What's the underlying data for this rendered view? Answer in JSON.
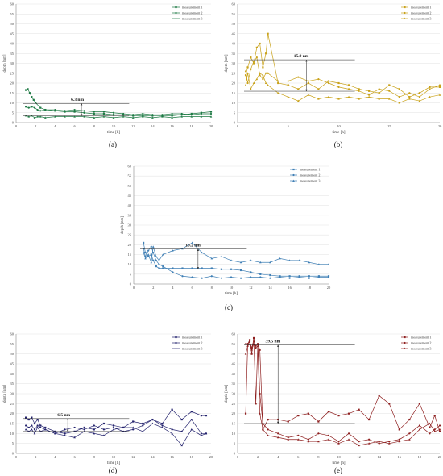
{
  "chart_data": [
    {
      "type": "line",
      "panel_label": "(a)",
      "xlabel": "time [h]",
      "ylabel": "depth [nm]",
      "xlim": [
        0,
        20
      ],
      "ylim": [
        0,
        60
      ],
      "xticks": [
        0,
        2,
        4,
        6,
        8,
        10,
        12,
        14,
        16,
        18,
        20
      ],
      "yticks": [
        0,
        5,
        10,
        15,
        20,
        25,
        30,
        35,
        40,
        45,
        50,
        55,
        60
      ],
      "color": "#1e7a44",
      "legend_position": "top-right",
      "annotation": {
        "text": "6.3 nm",
        "x": 6.7,
        "y_top": 9.7,
        "y_bottom": 3.4
      },
      "series": [
        {
          "name": "measurement 1",
          "x": [
            1.0,
            1.2,
            1.4,
            1.6,
            1.8,
            2.0,
            2.5,
            3,
            4,
            5,
            6,
            7,
            8,
            9,
            10,
            11,
            12,
            13,
            14,
            15,
            16,
            17,
            18,
            19,
            20
          ],
          "values": [
            16.5,
            17.0,
            15.0,
            13.0,
            11.5,
            10.0,
            7.5,
            6.5,
            6.0,
            5.5,
            5.5,
            5.0,
            4.5,
            4.5,
            4.0,
            4.0,
            3.5,
            3.5,
            3.5,
            3.5,
            3.5,
            4.0,
            4.5,
            5.0,
            5.5
          ]
        },
        {
          "name": "measurement 2",
          "x": [
            1.0,
            1.3,
            1.6,
            1.9,
            2.2,
            2.5,
            3,
            4,
            5,
            6,
            7,
            8,
            9,
            10,
            11,
            12,
            13,
            14,
            15,
            16,
            17,
            18,
            19,
            20
          ],
          "values": [
            8.0,
            7.5,
            8.0,
            7.5,
            6.5,
            6.0,
            6.5,
            6.5,
            6.0,
            6.5,
            6.0,
            5.5,
            5.5,
            5.0,
            4.5,
            4.0,
            4.5,
            4.0,
            4.0,
            4.5,
            4.5,
            4.0,
            4.5,
            4.5
          ]
        },
        {
          "name": "measurement 3",
          "x": [
            1.0,
            1.3,
            1.6,
            1.9,
            2.2,
            2.5,
            3,
            4,
            5,
            6,
            7,
            8,
            9,
            10,
            11,
            12,
            13,
            14,
            15,
            16,
            17,
            18,
            19,
            20
          ],
          "values": [
            3.5,
            3.0,
            3.5,
            2.5,
            3.0,
            3.0,
            2.5,
            3.0,
            3.0,
            3.0,
            3.0,
            2.5,
            3.0,
            2.5,
            3.0,
            2.5,
            3.0,
            2.5,
            3.0,
            2.5,
            3.0,
            3.0,
            3.0,
            3.0
          ]
        }
      ]
    },
    {
      "type": "line",
      "panel_label": "(b)",
      "xlabel": "time [h]",
      "ylabel": "depth [nm]",
      "xlim": [
        0,
        20
      ],
      "ylim": [
        0,
        60
      ],
      "xticks": [
        0,
        5,
        10,
        15,
        20
      ],
      "yticks": [
        0,
        5,
        10,
        15,
        20,
        25,
        30,
        35,
        40,
        45,
        50,
        55,
        60
      ],
      "color": "#c9a21a",
      "legend_position": "top-right",
      "annotation": {
        "text": "15.9 nm",
        "x": 6.8,
        "y_top": 31.8,
        "y_bottom": 15.9
      },
      "series": [
        {
          "name": "measurement 1",
          "x": [
            0.8,
            1.0,
            1.3,
            1.6,
            1.9,
            2.2,
            2.5,
            2.8,
            3,
            4,
            5,
            6,
            7,
            8,
            9,
            10,
            11,
            12,
            13,
            14,
            15,
            16,
            17,
            18,
            19,
            20
          ],
          "values": [
            24,
            28,
            33,
            30,
            38,
            40,
            28,
            35,
            45,
            20,
            19,
            17,
            20,
            17,
            21,
            20,
            19,
            17,
            16,
            15,
            19,
            17,
            13,
            15,
            18,
            18
          ]
        },
        {
          "name": "measurement 2",
          "x": [
            0.8,
            1.0,
            1.3,
            1.6,
            1.9,
            2.2,
            2.5,
            2.8,
            3,
            4,
            5,
            6,
            7,
            8,
            9,
            10,
            11,
            12,
            13,
            14,
            15,
            16,
            17,
            18,
            19,
            20
          ],
          "values": [
            26,
            20,
            27,
            31,
            33,
            24,
            22,
            25,
            25,
            21,
            21,
            23,
            21,
            22,
            20,
            18,
            17,
            16,
            14,
            17,
            16,
            13,
            15,
            13,
            17,
            19
          ]
        },
        {
          "name": "measurement 3",
          "x": [
            0.8,
            1.0,
            1.3,
            1.6,
            1.9,
            2.2,
            2.5,
            2.8,
            3,
            4,
            5,
            6,
            7,
            8,
            9,
            10,
            11,
            12,
            13,
            14,
            15,
            16,
            17,
            18,
            19,
            20
          ],
          "values": [
            19,
            25,
            17,
            20,
            22,
            25,
            24,
            20,
            19,
            15,
            13,
            11,
            14,
            12,
            13,
            12,
            13,
            12,
            13,
            12,
            12,
            10,
            12,
            11,
            13,
            14
          ]
        }
      ]
    },
    {
      "type": "line",
      "panel_label": "(c)",
      "xlabel": "time [h]",
      "ylabel": "depth [nm]",
      "xlim": [
        0,
        20
      ],
      "ylim": [
        0,
        60
      ],
      "xticks": [
        0,
        2,
        4,
        6,
        8,
        10,
        12,
        14,
        16,
        18,
        20
      ],
      "yticks": [
        0,
        5,
        10,
        15,
        20,
        25,
        30,
        35,
        40,
        45,
        50,
        55,
        60
      ],
      "color": "#3f7fb5",
      "legend_position": "top-right",
      "annotation": {
        "text": "10.2 nm",
        "x": 6.6,
        "y_top": 17.8,
        "y_bottom": 7.6
      },
      "series": [
        {
          "name": "measurement 1",
          "x": [
            1.0,
            1.2,
            1.5,
            1.8,
            2.0,
            2.3,
            2.6,
            3,
            4,
            5,
            6,
            7,
            8,
            9,
            10,
            11,
            12,
            13,
            14,
            15,
            16,
            17,
            18,
            19,
            20
          ],
          "values": [
            21,
            16,
            14,
            15,
            12,
            9,
            8,
            8,
            8,
            8,
            8,
            8,
            8,
            7.5,
            7.5,
            7,
            6,
            5,
            4.5,
            4,
            4,
            4,
            4,
            4,
            4
          ]
        },
        {
          "name": "measurement 2",
          "x": [
            1.0,
            1.2,
            1.5,
            1.8,
            2.0,
            2.3,
            2.6,
            3,
            4,
            5,
            6,
            7,
            8,
            9,
            10,
            11,
            12,
            13,
            14,
            15,
            16,
            17,
            18,
            19,
            20
          ],
          "values": [
            18,
            14,
            17,
            19,
            16,
            12,
            10,
            9,
            6,
            4,
            3.5,
            3,
            4,
            3,
            3.5,
            3,
            3.5,
            3.5,
            3,
            3.5,
            3,
            3.5,
            3,
            3.5,
            3.5
          ]
        },
        {
          "name": "measurement 3",
          "x": [
            1.0,
            1.2,
            1.5,
            1.8,
            2.0,
            2.3,
            2.6,
            3,
            4,
            5,
            6,
            7,
            8,
            9,
            10,
            11,
            12,
            13,
            14,
            15,
            16,
            17,
            18,
            19,
            20
          ],
          "values": [
            16,
            13,
            15,
            11,
            19,
            14,
            12,
            15,
            17,
            18,
            21,
            16,
            13,
            14,
            12,
            11,
            12,
            11,
            11,
            13,
            12,
            12,
            11,
            10,
            10
          ]
        }
      ]
    },
    {
      "type": "line",
      "panel_label": "(d)",
      "xlabel": "time [h]",
      "ylabel": "depth [nm]",
      "xlim": [
        0,
        20
      ],
      "ylim": [
        0,
        60
      ],
      "xticks": [
        0,
        2,
        4,
        6,
        8,
        10,
        12,
        14,
        16,
        18,
        20
      ],
      "yticks": [
        0,
        5,
        10,
        15,
        20,
        25,
        30,
        35,
        40,
        45,
        50,
        55,
        60
      ],
      "color": "#24236e",
      "legend_position": "top-right",
      "annotation": {
        "text": "6.5 nm",
        "x": 5.3,
        "y_top": 17.5,
        "y_bottom": 11.0
      },
      "series": [
        {
          "name": "measurement 1",
          "x": [
            1.0,
            1.3,
            1.6,
            1.9,
            2.2,
            2.5,
            3,
            4,
            5,
            6,
            7,
            8,
            9,
            10,
            11,
            12,
            13,
            14,
            15,
            16,
            17,
            18,
            19,
            19.5
          ],
          "values": [
            18,
            17,
            18,
            15,
            17,
            14,
            13,
            11,
            10,
            11,
            13,
            12,
            15,
            14,
            13,
            16,
            15,
            17,
            15,
            22,
            17,
            21,
            19,
            19
          ]
        },
        {
          "name": "measurement 2",
          "x": [
            1.0,
            1.3,
            1.6,
            1.9,
            2.2,
            2.5,
            3,
            4,
            5,
            6,
            7,
            8,
            9,
            10,
            11,
            12,
            13,
            14,
            15,
            16,
            17,
            18,
            19,
            19.5
          ],
          "values": [
            14,
            13,
            14,
            12,
            14,
            13,
            12,
            10,
            12,
            13,
            12,
            14,
            12,
            13,
            11,
            12,
            14,
            17,
            14,
            12,
            11,
            17,
            10,
            10
          ]
        },
        {
          "name": "measurement 3",
          "x": [
            1.0,
            1.3,
            1.6,
            1.9,
            2.2,
            2.5,
            3,
            4,
            5,
            6,
            7,
            8,
            9,
            10,
            11,
            12,
            13,
            14,
            15,
            16,
            17,
            18,
            19,
            19.5
          ],
          "values": [
            12,
            11,
            12,
            10,
            13,
            11,
            12,
            10,
            9,
            8,
            11,
            10,
            9,
            12,
            13,
            13,
            11,
            15,
            13,
            10,
            4,
            12,
            9,
            10
          ]
        }
      ]
    },
    {
      "type": "line",
      "panel_label": "(e)",
      "xlabel": "time [h]",
      "ylabel": "depth [nm]",
      "xlim": [
        0,
        20
      ],
      "ylim": [
        0,
        60
      ],
      "xticks": [
        0,
        2,
        4,
        6,
        8,
        10,
        12,
        14,
        16,
        18,
        20
      ],
      "yticks": [
        0,
        5,
        10,
        15,
        20,
        25,
        30,
        35,
        40,
        45,
        50,
        55,
        60
      ],
      "color": "#8e1f1f",
      "legend_position": "top-right",
      "annotation": {
        "text": "39.5 nm",
        "x": 4.0,
        "y_top": 54.5,
        "y_bottom": 15.0
      },
      "series": [
        {
          "name": "measurement 1",
          "x": [
            0.8,
            1.0,
            1.2,
            1.4,
            1.6,
            1.8,
            2.0,
            2.2,
            2.5,
            3,
            4,
            5,
            6,
            7,
            8,
            9,
            10,
            11,
            12,
            13,
            14,
            15,
            16,
            17,
            18,
            19,
            19.5,
            20
          ],
          "values": [
            20,
            55,
            57,
            50,
            58,
            25,
            55,
            52,
            12,
            17,
            17,
            16,
            19,
            20,
            16,
            21,
            19,
            20,
            22,
            17,
            29,
            25,
            12,
            17,
            25,
            13,
            19,
            11
          ]
        },
        {
          "name": "measurement 2",
          "x": [
            0.8,
            1.0,
            1.2,
            1.4,
            1.6,
            1.8,
            2.0,
            2.2,
            2.5,
            3,
            4,
            5,
            6,
            7,
            8,
            9,
            10,
            11,
            12,
            13,
            14,
            15,
            16,
            17,
            18,
            19,
            19.5,
            20
          ],
          "values": [
            55,
            55,
            56,
            53,
            57,
            54,
            55,
            30,
            15,
            12,
            10,
            8,
            9,
            7,
            10,
            9,
            6,
            10,
            6,
            7,
            5,
            6,
            7,
            10,
            14,
            10,
            12,
            14
          ]
        },
        {
          "name": "measurement 3",
          "x": [
            0.8,
            1.0,
            1.2,
            1.4,
            1.6,
            1.8,
            2.0,
            2.2,
            2.5,
            3,
            4,
            5,
            6,
            7,
            8,
            9,
            10,
            11,
            12,
            13,
            14,
            15,
            16,
            17,
            18,
            19,
            19.5,
            20
          ],
          "values": [
            50,
            54,
            55,
            52,
            55,
            53,
            54,
            20,
            12,
            9,
            8,
            7,
            7,
            6,
            6,
            7,
            5,
            7,
            4,
            5,
            6,
            5,
            6,
            7,
            12,
            15,
            11,
            12
          ]
        }
      ]
    }
  ]
}
